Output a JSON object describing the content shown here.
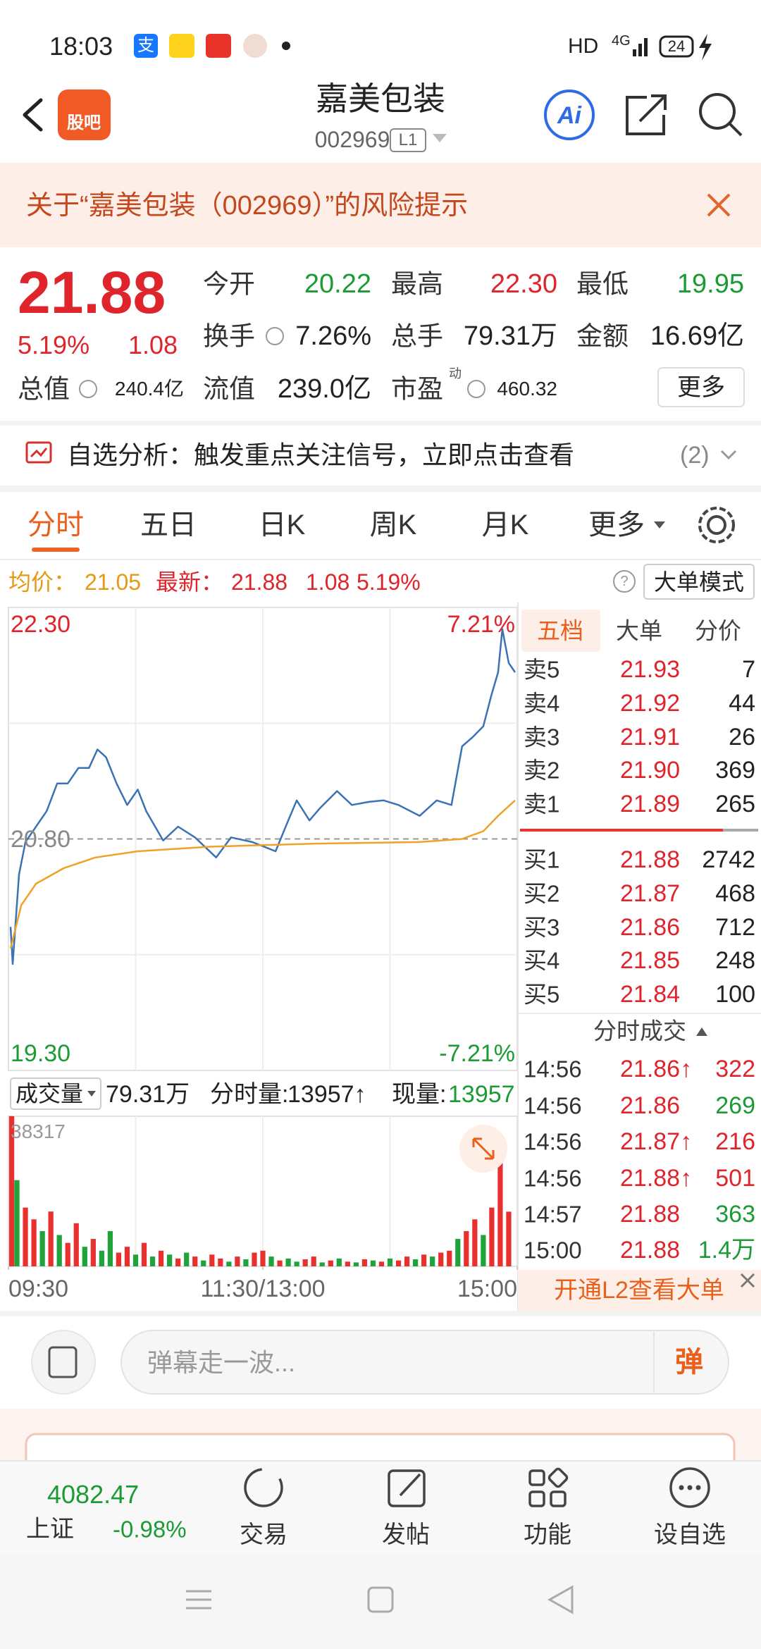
{
  "status_bar": {
    "time": "18:03",
    "alipay": "支",
    "network": "HD",
    "signal": "4G",
    "battery": "24"
  },
  "header": {
    "logo": "股吧",
    "title": "嘉美包装",
    "code": "002969",
    "level": "L1",
    "ai": "Ai"
  },
  "notice": {
    "text": "关于“嘉美包装（002969）”的风险提示"
  },
  "quote": {
    "price": "21.88",
    "change_pct": "5.19%",
    "change": "1.08",
    "stats": [
      [
        "今开",
        "20.22"
      ],
      [
        "最高",
        "22.30"
      ],
      [
        "最低",
        "19.95"
      ],
      [
        "换手",
        "7.26%"
      ],
      [
        "总手",
        "79.31万"
      ],
      [
        "金额",
        "16.69亿"
      ],
      [
        "总值",
        "240.4亿"
      ],
      [
        "流值",
        "239.0亿"
      ],
      [
        "市盈",
        "460.32"
      ]
    ],
    "pe_tag": "动",
    "more": "更多"
  },
  "signal": {
    "text": "自选分析：触发重点关注信号，立即点击查看",
    "count": "(2)"
  },
  "tabs": [
    "分时",
    "五日",
    "日K",
    "周K",
    "月K",
    "更多"
  ],
  "summary": {
    "avg_label": "均价：",
    "avg": "21.05",
    "last_label": "最新：",
    "last": "21.88",
    "change": "1.08",
    "change_pct": "5.19%",
    "mode": "大单模式"
  },
  "chart_data": [
    {
      "type": "line",
      "xlim": [
        0,
        240
      ],
      "ylim": [
        19.3,
        22.3
      ],
      "yticks": [
        {
          "value": 22.3,
          "label": "22.30"
        },
        {
          "value": 20.8,
          "label": "20.80"
        },
        {
          "value": 19.3,
          "label": "19.30"
        }
      ],
      "y2lim": [
        -7.21,
        7.21
      ],
      "y2ticks": [
        {
          "value": 7.21,
          "label": "7.21%"
        },
        {
          "value": -7.21,
          "label": "-7.21%"
        }
      ],
      "series": [
        {
          "color": "#3a72b5",
          "x": [
            1,
            2,
            5,
            8,
            13,
            18,
            23,
            28,
            33,
            38,
            42,
            46,
            51,
            56,
            61,
            65,
            73,
            80,
            88,
            98,
            105,
            115,
            126,
            132,
            136,
            142,
            147,
            155,
            162,
            170,
            177,
            184,
            194,
            202,
            209,
            214,
            219,
            224,
            228,
            231,
            233,
            236,
            239
          ],
          "values": [
            20.23,
            19.99,
            20.57,
            20.78,
            20.88,
            20.98,
            21.16,
            21.16,
            21.26,
            21.26,
            21.38,
            21.33,
            21.16,
            21.02,
            21.12,
            20.98,
            20.79,
            20.88,
            20.81,
            20.68,
            20.81,
            20.78,
            20.72,
            20.92,
            21.05,
            20.92,
            21.0,
            21.11,
            21.02,
            21.04,
            21.05,
            21.02,
            20.95,
            21.05,
            21.02,
            21.4,
            21.46,
            21.53,
            21.74,
            21.88,
            22.16,
            21.94,
            21.88
          ]
        },
        {
          "color": "#eea227",
          "x": [
            1,
            6,
            13,
            26,
            41,
            61,
            95,
            145,
            194,
            214,
            224,
            231,
            239
          ],
          "values": [
            20.09,
            20.37,
            20.51,
            20.61,
            20.68,
            20.72,
            20.75,
            20.77,
            20.78,
            20.8,
            20.85,
            20.95,
            21.05
          ]
        }
      ]
    },
    {
      "type": "bar",
      "xlim": [
        0,
        240
      ],
      "ylim": [
        0,
        38317
      ],
      "yticks": [
        38317
      ],
      "xticks": [
        {
          "value": 0,
          "label": "09:30"
        },
        {
          "value": 120,
          "label": "11:30/13:00"
        },
        {
          "value": 240,
          "label": "15:00"
        }
      ],
      "x": [
        0,
        4,
        8,
        12,
        16,
        20,
        24,
        28,
        32,
        36,
        40,
        44,
        48,
        52,
        56,
        60,
        64,
        68,
        72,
        76,
        80,
        84,
        88,
        92,
        96,
        100,
        104,
        108,
        112,
        116,
        120,
        124,
        128,
        132,
        136,
        140,
        144,
        148,
        152,
        156,
        160,
        164,
        168,
        172,
        176,
        180,
        184,
        188,
        192,
        196,
        200,
        204,
        208,
        212,
        216,
        220,
        224,
        228,
        232,
        236
      ],
      "values": [
        38317,
        22000,
        15000,
        12000,
        9000,
        14000,
        8000,
        6000,
        11000,
        5000,
        7000,
        4000,
        9000,
        3500,
        5000,
        3000,
        6000,
        2500,
        4000,
        3000,
        2000,
        3500,
        2500,
        1500,
        3000,
        2000,
        1200,
        2500,
        1800,
        3500,
        4000,
        2500,
        1500,
        2000,
        1200,
        1800,
        2500,
        1000,
        1500,
        2000,
        1200,
        1000,
        1800,
        1500,
        1200,
        2000,
        1500,
        2500,
        1800,
        3000,
        2500,
        3500,
        4000,
        7000,
        9000,
        12000,
        8000,
        15000,
        32000,
        13957
      ],
      "colors": [
        "#e8312f",
        "#1fa33a",
        "#e8312f",
        "#e8312f",
        "#1fa33a",
        "#e8312f",
        "#1fa33a",
        "#e8312f",
        "#e8312f",
        "#1fa33a",
        "#e8312f",
        "#1fa33a",
        "#1fa33a",
        "#e8312f",
        "#e8312f",
        "#1fa33a",
        "#e8312f",
        "#1fa33a",
        "#e8312f",
        "#1fa33a",
        "#e8312f",
        "#1fa33a",
        "#e8312f",
        "#1fa33a",
        "#e8312f",
        "#e8312f",
        "#1fa33a",
        "#e8312f",
        "#1fa33a",
        "#e8312f",
        "#e8312f",
        "#1fa33a",
        "#e8312f",
        "#1fa33a",
        "#1fa33a",
        "#e8312f",
        "#e8312f",
        "#1fa33a",
        "#e8312f",
        "#1fa33a",
        "#e8312f",
        "#1fa33a",
        "#e8312f",
        "#1fa33a",
        "#e8312f",
        "#1fa33a",
        "#e8312f",
        "#e8312f",
        "#1fa33a",
        "#e8312f",
        "#1fa33a",
        "#e8312f",
        "#e8312f",
        "#1fa33a",
        "#e8312f",
        "#e8312f",
        "#1fa33a",
        "#e8312f",
        "#e8312f",
        "#e8312f"
      ]
    }
  ],
  "volume_bar": {
    "label": "成交量",
    "total": "79.31万",
    "minute_label": "分时量:",
    "minute": "13957↑",
    "now_label": "现量:",
    "now": "13957"
  },
  "book": {
    "tabs": [
      "五档",
      "大单",
      "分价"
    ],
    "asks": [
      [
        "卖5",
        "21.93",
        "7"
      ],
      [
        "卖4",
        "21.92",
        "44"
      ],
      [
        "卖3",
        "21.91",
        "26"
      ],
      [
        "卖2",
        "21.90",
        "369"
      ],
      [
        "卖1",
        "21.89",
        "265"
      ]
    ],
    "bids": [
      [
        "买1",
        "21.88",
        "2742"
      ],
      [
        "买2",
        "21.87",
        "468"
      ],
      [
        "买3",
        "21.86",
        "712"
      ],
      [
        "买4",
        "21.85",
        "248"
      ],
      [
        "买5",
        "21.84",
        "100"
      ]
    ]
  },
  "trades": {
    "title": "分时成交",
    "rows": [
      [
        "14:56",
        "21.86↑",
        "322"
      ],
      [
        "14:56",
        "21.86",
        "269"
      ],
      [
        "14:56",
        "21.87↑",
        "216"
      ],
      [
        "14:56",
        "21.88↑",
        "501"
      ],
      [
        "14:57",
        "21.88",
        "363"
      ],
      [
        "15:00",
        "21.88",
        "1.4万"
      ]
    ]
  },
  "l2_banner": "开通L2查看大单",
  "danmu": {
    "placeholder": "弹幕走一波...",
    "button": "弹"
  },
  "bottom_nav": {
    "index_value": "4082.47",
    "index_name": "上证",
    "index_change": "-0.98%",
    "items": [
      "交易",
      "发帖",
      "功能",
      "设自选"
    ]
  }
}
